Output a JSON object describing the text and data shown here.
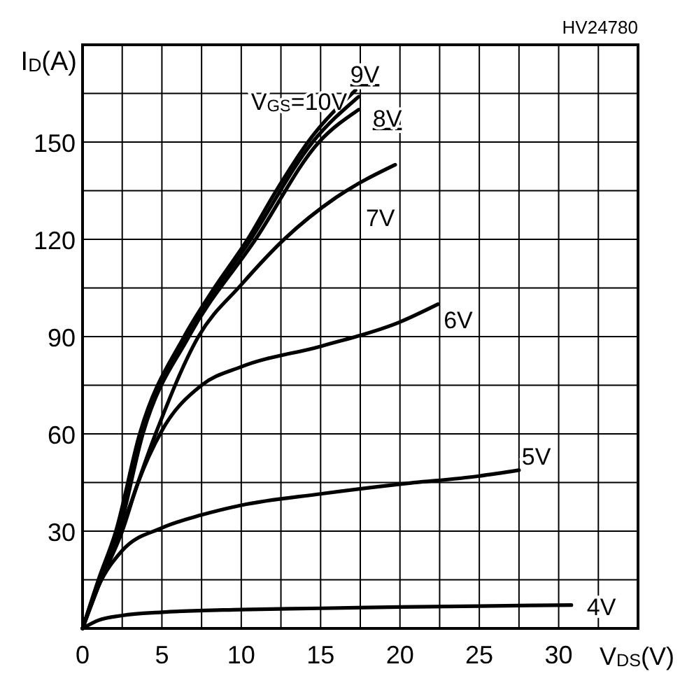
{
  "chart_data": {
    "type": "line",
    "xlabel": "V$_{DS}$(V)",
    "ylabel": "I$_{D}$(A)",
    "annotations": [
      "HV24780"
    ],
    "xlim": [
      0,
      35
    ],
    "ylim": [
      0,
      180
    ],
    "xticks": [
      0,
      {
        "value": 2.5,
        "label": null
      },
      5,
      {
        "value": 7.5,
        "label": null
      },
      10,
      {
        "value": 12.5,
        "label": null
      },
      15,
      {
        "value": 17.5,
        "label": null
      },
      20,
      {
        "value": 22.5,
        "label": null
      },
      25,
      {
        "value": 27.5,
        "label": null
      },
      30,
      {
        "value": 32.5,
        "label": null
      },
      {
        "value": 35,
        "label": null
      }
    ],
    "yticks": [
      {
        "value": 0,
        "label": null
      },
      {
        "value": 15,
        "label": null
      },
      30,
      {
        "value": 45,
        "label": null
      },
      60,
      {
        "value": 75,
        "label": null
      },
      90,
      {
        "value": 105,
        "label": null
      },
      120,
      {
        "value": 135,
        "label": null
      },
      150,
      {
        "value": 165,
        "label": null
      },
      {
        "value": 180,
        "label": null
      }
    ],
    "grid": true,
    "marker": "none",
    "line_style": "solid",
    "series": [
      {
        "name": "V$_{GS}$=10V",
        "color": "#000000",
        "x": [
          0,
          1,
          2.1,
          3.6,
          6.4,
          8.3,
          10.4,
          12.2,
          14.2,
          17.2
        ],
        "values": [
          0,
          15,
          30,
          60,
          90,
          105,
          120,
          135,
          150,
          166
        ]
      },
      {
        "name": "9V",
        "color": "#000000",
        "x": [
          0,
          1,
          2.2,
          3.7,
          6.5,
          10.6,
          14.5,
          17.4
        ],
        "values": [
          0,
          14.5,
          30,
          60,
          90,
          120,
          150,
          164
        ]
      },
      {
        "name": "8V",
        "color": "#000000",
        "x": [
          0,
          1,
          2.3,
          3.8,
          6.7,
          10.9,
          14.9,
          17.4
        ],
        "values": [
          0,
          14,
          30,
          60,
          90,
          120,
          150,
          160
        ]
      },
      {
        "name": "7V",
        "color": "#000000",
        "x": [
          0,
          1,
          2.4,
          4.6,
          7.3,
          10,
          12.7,
          16,
          19.7
        ],
        "values": [
          0,
          13,
          30,
          60,
          90,
          106,
          120,
          133,
          143
        ]
      },
      {
        "name": "6V",
        "color": "#000000",
        "x": [
          0,
          1,
          2.5,
          3.5,
          5,
          7.5,
          10,
          15,
          20,
          22.4
        ],
        "values": [
          0,
          13,
          30,
          45,
          61,
          75,
          80.7,
          87,
          94.5,
          100
        ]
      },
      {
        "name": "5V",
        "color": "#000000",
        "x": [
          0,
          1,
          2.5,
          5,
          7.5,
          10,
          15,
          20,
          25,
          27.5
        ],
        "values": [
          0,
          13,
          24,
          31,
          35,
          38,
          41.5,
          44.5,
          47,
          48.8
        ]
      },
      {
        "name": "4V",
        "color": "#000000",
        "x": [
          0,
          1,
          2.5,
          5,
          10,
          15,
          20,
          25,
          30.8
        ],
        "values": [
          0,
          2.5,
          4,
          5,
          5.8,
          6.2,
          6.6,
          6.9,
          7.2
        ]
      }
    ]
  }
}
